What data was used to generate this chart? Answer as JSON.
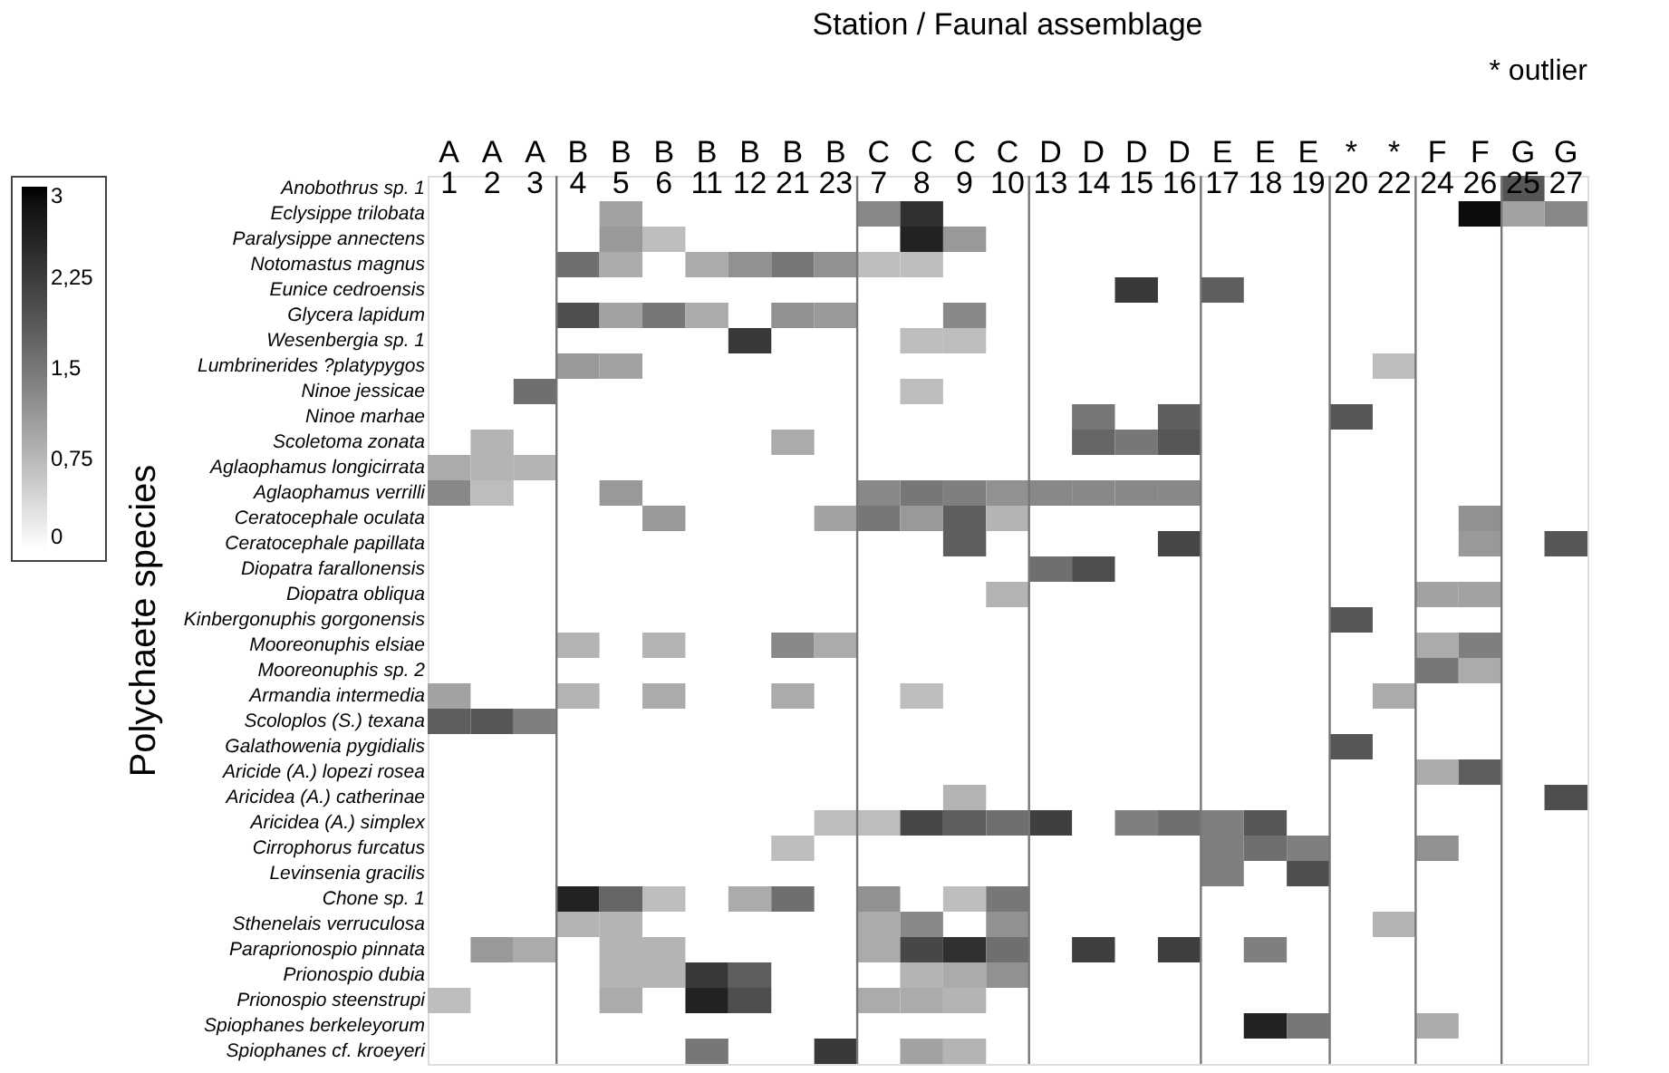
{
  "chart_data": {
    "type": "heatmap",
    "title": "Station / Faunal assemblage",
    "ylabel": "Polychaete species",
    "annotations": [
      "* outlier"
    ],
    "categories": [
      "A 1",
      "A 2",
      "A 3",
      "B 4",
      "B 5",
      "B 6",
      "B 11",
      "B 12",
      "B 21",
      "B 23",
      "C 7",
      "C 8",
      "C 9",
      "C 10",
      "D 13",
      "D 14",
      "D 15",
      "D 16",
      "E 17",
      "E 18",
      "E 19",
      "* 20",
      "* 22",
      "F 24",
      "F 26",
      "G 25",
      "G 27"
    ],
    "y_categories": [
      "Anobothrus sp. 1",
      "Eclysippe trilobata",
      "Paralysippe annectens",
      "Notomastus magnus",
      "Eunice cedroensis",
      "Glycera lapidum",
      "Wesenbergia sp. 1",
      "Lumbrinerides ?platypygos",
      "Ninoe jessicae",
      "Ninoe marhae",
      "Scoletoma zonata",
      "Aglaophamus longicirrata",
      "Aglaophamus verrilli",
      "Ceratocephale oculata",
      "Ceratocephale papillata",
      "Diopatra farallonensis",
      "Diopatra obliqua",
      "Kinbergonuphis gorgonensis",
      "Mooreonuphis elsiae",
      "Mooreonuphis sp. 2",
      "Armandia intermedia",
      "Scoloplos (S.) texana",
      "Galathowenia pygidialis",
      "Aricide (A.) lopezi rosea",
      "Aricidea (A.) catherinae",
      "Aricidea (A.) simplex",
      "Cirrophorus furcatus",
      "Levinsenia gracilis",
      "Chone sp. 1",
      "Sthenelais verruculosa",
      "Paraprionospio pinnata",
      "Prionospio dubia",
      "Prionospio steenstrupi",
      "Spiophanes berkeleyorum",
      "Spiophanes cf. kroeyeri"
    ],
    "cells": [
      [
        null,
        null,
        null,
        null,
        null,
        null,
        null,
        null,
        null,
        null,
        null,
        null,
        null,
        null,
        null,
        null,
        null,
        null,
        null,
        null,
        null,
        null,
        null,
        null,
        null,
        1.9,
        null
      ],
      [
        null,
        null,
        null,
        null,
        1.0,
        null,
        null,
        null,
        null,
        null,
        1.3,
        2.4,
        null,
        null,
        null,
        null,
        null,
        null,
        null,
        null,
        null,
        null,
        null,
        null,
        2.9,
        1.0,
        1.3
      ],
      [
        null,
        null,
        null,
        null,
        1.1,
        0.7,
        null,
        null,
        null,
        null,
        null,
        2.6,
        1.1,
        null,
        null,
        null,
        null,
        null,
        null,
        null,
        null,
        null,
        null,
        null,
        null,
        null,
        null
      ],
      [
        null,
        null,
        null,
        1.6,
        0.9,
        null,
        0.9,
        1.2,
        1.5,
        1.2,
        0.7,
        0.7,
        null,
        null,
        null,
        null,
        null,
        null,
        null,
        null,
        null,
        null,
        null,
        null,
        null,
        null,
        null
      ],
      [
        null,
        null,
        null,
        null,
        null,
        null,
        null,
        null,
        null,
        null,
        null,
        null,
        null,
        null,
        null,
        null,
        2.3,
        null,
        1.8,
        null,
        null,
        null,
        null,
        null,
        null,
        null,
        null
      ],
      [
        null,
        null,
        null,
        2.0,
        1.0,
        1.5,
        0.9,
        null,
        1.2,
        1.1,
        null,
        null,
        1.3,
        null,
        null,
        null,
        null,
        null,
        null,
        null,
        null,
        null,
        null,
        null,
        null,
        null,
        null
      ],
      [
        null,
        null,
        null,
        null,
        null,
        null,
        null,
        2.3,
        null,
        null,
        null,
        0.7,
        0.7,
        null,
        null,
        null,
        null,
        null,
        null,
        null,
        null,
        null,
        null,
        null,
        null,
        null,
        null
      ],
      [
        null,
        null,
        null,
        1.1,
        1.0,
        null,
        null,
        null,
        null,
        null,
        null,
        null,
        null,
        null,
        null,
        null,
        null,
        null,
        null,
        null,
        null,
        null,
        0.7,
        null,
        null,
        null,
        null
      ],
      [
        null,
        null,
        1.6,
        null,
        null,
        null,
        null,
        null,
        null,
        null,
        null,
        0.7,
        null,
        null,
        null,
        null,
        null,
        null,
        null,
        null,
        null,
        null,
        null,
        null,
        null,
        null,
        null
      ],
      [
        null,
        null,
        null,
        null,
        null,
        null,
        null,
        null,
        null,
        null,
        null,
        null,
        null,
        null,
        null,
        1.5,
        null,
        1.8,
        null,
        null,
        null,
        1.9,
        null,
        null,
        null,
        null,
        null
      ],
      [
        null,
        0.8,
        null,
        null,
        null,
        null,
        null,
        null,
        0.9,
        null,
        null,
        null,
        null,
        null,
        null,
        1.7,
        1.5,
        1.9,
        null,
        null,
        null,
        null,
        null,
        null,
        null,
        null,
        null
      ],
      [
        0.9,
        0.8,
        0.8,
        null,
        null,
        null,
        null,
        null,
        null,
        null,
        null,
        null,
        null,
        null,
        null,
        null,
        null,
        null,
        null,
        null,
        null,
        null,
        null,
        null,
        null,
        null,
        null
      ],
      [
        1.3,
        0.7,
        null,
        null,
        1.1,
        null,
        null,
        null,
        null,
        null,
        1.3,
        1.5,
        1.4,
        1.2,
        1.3,
        1.3,
        1.3,
        1.3,
        null,
        null,
        null,
        null,
        null,
        null,
        null,
        null,
        null
      ],
      [
        null,
        null,
        null,
        null,
        null,
        1.1,
        null,
        null,
        null,
        1.0,
        1.5,
        1.1,
        1.8,
        0.8,
        null,
        null,
        null,
        null,
        null,
        null,
        null,
        null,
        null,
        null,
        1.2,
        null,
        null
      ],
      [
        null,
        null,
        null,
        null,
        null,
        null,
        null,
        null,
        null,
        null,
        null,
        null,
        1.8,
        null,
        null,
        null,
        null,
        2.1,
        null,
        null,
        null,
        null,
        null,
        null,
        1.1,
        null,
        1.9
      ],
      [
        null,
        null,
        null,
        null,
        null,
        null,
        null,
        null,
        null,
        null,
        null,
        null,
        null,
        null,
        1.6,
        2.0,
        null,
        null,
        null,
        null,
        null,
        null,
        null,
        null,
        null,
        null,
        null
      ],
      [
        null,
        null,
        null,
        null,
        null,
        null,
        null,
        null,
        null,
        null,
        null,
        null,
        null,
        0.8,
        null,
        null,
        null,
        null,
        null,
        null,
        null,
        null,
        null,
        1.0,
        1.0,
        null,
        null
      ],
      [
        null,
        null,
        null,
        null,
        null,
        null,
        null,
        null,
        null,
        null,
        null,
        null,
        null,
        null,
        null,
        null,
        null,
        null,
        null,
        null,
        null,
        1.9,
        null,
        null,
        null,
        null,
        null
      ],
      [
        null,
        null,
        null,
        0.8,
        null,
        0.8,
        null,
        null,
        1.3,
        0.9,
        null,
        null,
        null,
        null,
        null,
        null,
        null,
        null,
        null,
        null,
        null,
        null,
        null,
        0.9,
        1.4,
        null,
        null
      ],
      [
        null,
        null,
        null,
        null,
        null,
        null,
        null,
        null,
        null,
        null,
        null,
        null,
        null,
        null,
        null,
        null,
        null,
        null,
        null,
        null,
        null,
        null,
        null,
        1.5,
        0.9,
        null,
        null
      ],
      [
        1.0,
        null,
        null,
        0.8,
        null,
        0.9,
        null,
        null,
        0.9,
        null,
        null,
        0.7,
        null,
        null,
        null,
        null,
        null,
        null,
        null,
        null,
        null,
        null,
        0.9,
        null,
        null,
        null,
        null
      ],
      [
        1.8,
        1.9,
        1.4,
        null,
        null,
        null,
        null,
        null,
        null,
        null,
        null,
        null,
        null,
        null,
        null,
        null,
        null,
        null,
        null,
        null,
        null,
        null,
        null,
        null,
        null,
        null,
        null
      ],
      [
        null,
        null,
        null,
        null,
        null,
        null,
        null,
        null,
        null,
        null,
        null,
        null,
        null,
        null,
        null,
        null,
        null,
        null,
        null,
        null,
        null,
        1.9,
        null,
        null,
        null,
        null,
        null
      ],
      [
        null,
        null,
        null,
        null,
        null,
        null,
        null,
        null,
        null,
        null,
        null,
        null,
        null,
        null,
        null,
        null,
        null,
        null,
        null,
        null,
        null,
        null,
        null,
        0.9,
        1.8,
        null,
        null
      ],
      [
        null,
        null,
        null,
        null,
        null,
        null,
        null,
        null,
        null,
        null,
        null,
        null,
        0.8,
        null,
        null,
        null,
        null,
        null,
        null,
        null,
        null,
        null,
        null,
        null,
        null,
        null,
        2.0
      ],
      [
        null,
        null,
        null,
        null,
        null,
        null,
        null,
        null,
        null,
        0.7,
        0.7,
        2.1,
        1.8,
        1.6,
        2.2,
        null,
        1.4,
        1.6,
        1.4,
        1.9,
        null,
        null,
        null,
        null,
        null,
        null,
        null
      ],
      [
        null,
        null,
        null,
        null,
        null,
        null,
        null,
        null,
        0.7,
        null,
        null,
        null,
        null,
        null,
        null,
        null,
        null,
        null,
        1.4,
        1.6,
        1.4,
        null,
        null,
        1.2,
        null,
        null,
        null
      ],
      [
        null,
        null,
        null,
        null,
        null,
        null,
        null,
        null,
        null,
        null,
        null,
        null,
        null,
        null,
        null,
        null,
        null,
        null,
        1.4,
        null,
        2.0,
        null,
        null,
        null,
        null,
        null,
        null
      ],
      [
        null,
        null,
        null,
        2.6,
        1.7,
        0.7,
        null,
        0.9,
        1.6,
        null,
        1.2,
        null,
        0.7,
        1.5,
        null,
        null,
        null,
        null,
        null,
        null,
        null,
        null,
        null,
        null,
        null,
        null,
        null
      ],
      [
        null,
        null,
        null,
        0.8,
        0.8,
        null,
        null,
        null,
        null,
        null,
        0.9,
        1.3,
        null,
        1.2,
        null,
        null,
        null,
        null,
        null,
        null,
        null,
        null,
        0.8,
        null,
        null,
        null,
        null
      ],
      [
        null,
        1.1,
        0.9,
        null,
        0.8,
        0.8,
        null,
        null,
        null,
        null,
        0.9,
        2.1,
        2.4,
        1.6,
        null,
        2.2,
        null,
        2.2,
        null,
        1.4,
        null,
        null,
        null,
        null,
        null,
        null,
        null
      ],
      [
        null,
        null,
        null,
        null,
        0.8,
        0.8,
        2.3,
        1.8,
        null,
        null,
        null,
        0.8,
        0.9,
        1.2,
        null,
        null,
        null,
        null,
        null,
        null,
        null,
        null,
        null,
        null,
        null,
        null,
        null
      ],
      [
        0.7,
        null,
        null,
        null,
        0.9,
        null,
        2.6,
        2.0,
        null,
        null,
        0.9,
        0.9,
        0.8,
        null,
        null,
        null,
        null,
        null,
        null,
        null,
        null,
        null,
        null,
        null,
        null,
        null,
        null
      ],
      [
        null,
        null,
        null,
        null,
        null,
        null,
        null,
        null,
        null,
        null,
        null,
        null,
        null,
        null,
        null,
        null,
        null,
        null,
        null,
        2.6,
        1.5,
        null,
        null,
        0.9,
        null,
        null,
        null
      ],
      [
        null,
        null,
        null,
        null,
        null,
        null,
        1.5,
        null,
        null,
        2.3,
        null,
        1.0,
        0.8,
        null,
        null,
        null,
        null,
        null,
        null,
        null,
        null,
        null,
        null,
        null,
        null,
        null,
        null
      ]
    ],
    "clim": [
      0,
      3
    ],
    "cticks": [
      0,
      {
        "value": 0.75,
        "label": "0,75"
      },
      {
        "value": 1.5,
        "label": "1,5"
      },
      {
        "value": 2.25,
        "label": "2,25"
      },
      3
    ],
    "grid": false
  }
}
